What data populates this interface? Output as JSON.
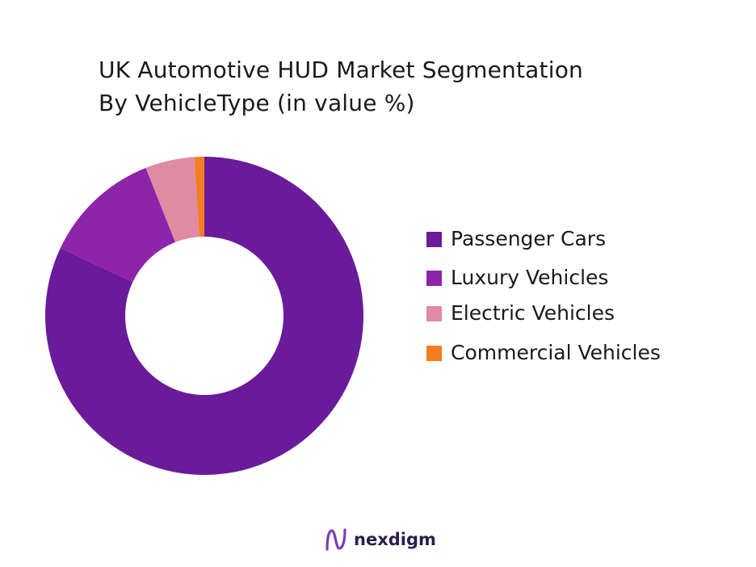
{
  "chart_data": {
    "type": "pie",
    "style": "donut",
    "title_lines": [
      "UK Automotive HUD Market Segmentation",
      "By VehicleType (in value %)"
    ],
    "categories": [
      "Passenger Cars",
      "Luxury Vehicles",
      "Electric Vehicles",
      "Commercial Vehicles"
    ],
    "values": [
      82,
      12,
      5,
      1
    ],
    "colors": [
      "#6a1b9a",
      "#8e24aa",
      "#e08aa4",
      "#f57c1f"
    ],
    "legend_position": "right"
  },
  "brand": {
    "name": "nexdigm",
    "icon": "nexdigm-logo-icon"
  }
}
